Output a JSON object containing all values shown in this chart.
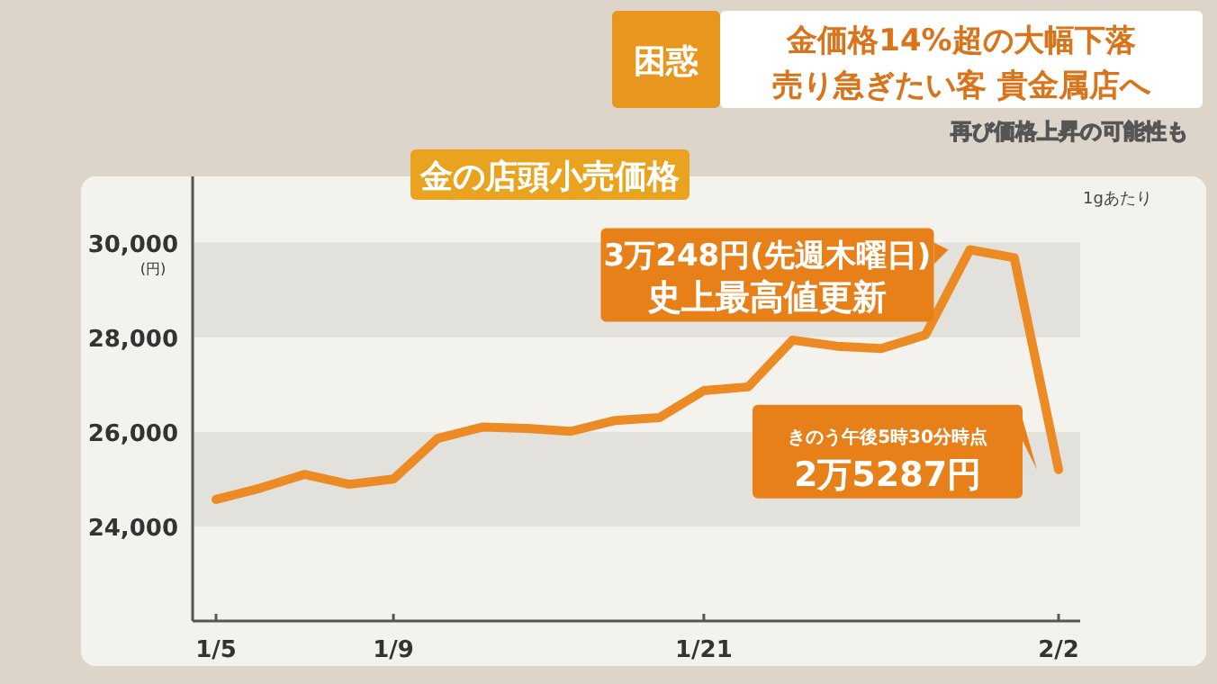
{
  "chart_data": {
    "type": "line",
    "title": "金の店頭小売価格",
    "ylabel": "(円)",
    "categories": [
      "1/5",
      null,
      null,
      null,
      "1/9",
      null,
      null,
      null,
      null,
      null,
      null,
      "1/21",
      null,
      null,
      null,
      null,
      null,
      null,
      null,
      "2/2"
    ],
    "series": [
      {
        "color": "#ec8a23",
        "values": [
          24570,
          24810,
          25100,
          24890,
          25000,
          25860,
          26100,
          26070,
          26010,
          26240,
          26300,
          26870,
          26950,
          27940,
          27810,
          27760,
          28050,
          29850,
          29680,
          25200
        ]
      }
    ],
    "ylim": [
      22000,
      31400
    ],
    "yticks": [
      {
        "value": 24000,
        "label": "24,000"
      },
      {
        "value": 26000,
        "label": "26,000"
      },
      {
        "value": 28000,
        "label": "28,000"
      },
      {
        "value": 30000,
        "label": "30,000"
      }
    ],
    "bands": [
      {
        "axis": "y",
        "from": 24000,
        "to": 26000,
        "color": "#e3e1dc"
      },
      {
        "axis": "y",
        "from": 28000,
        "to": 30000,
        "color": "#e3e1dc"
      }
    ],
    "grid": false,
    "marker": "none",
    "line_style": "solid",
    "annotations": [
      "困惑",
      "金価格14%超の大幅下落",
      "売り急ぎたい客 貴金属店へ",
      "再び価格上昇の可能性も",
      "1gあたり",
      "3万248円(先週木曜日)\n史上最高値更新",
      "きのう午後5時30分時点\n2万5287円"
    ]
  }
}
